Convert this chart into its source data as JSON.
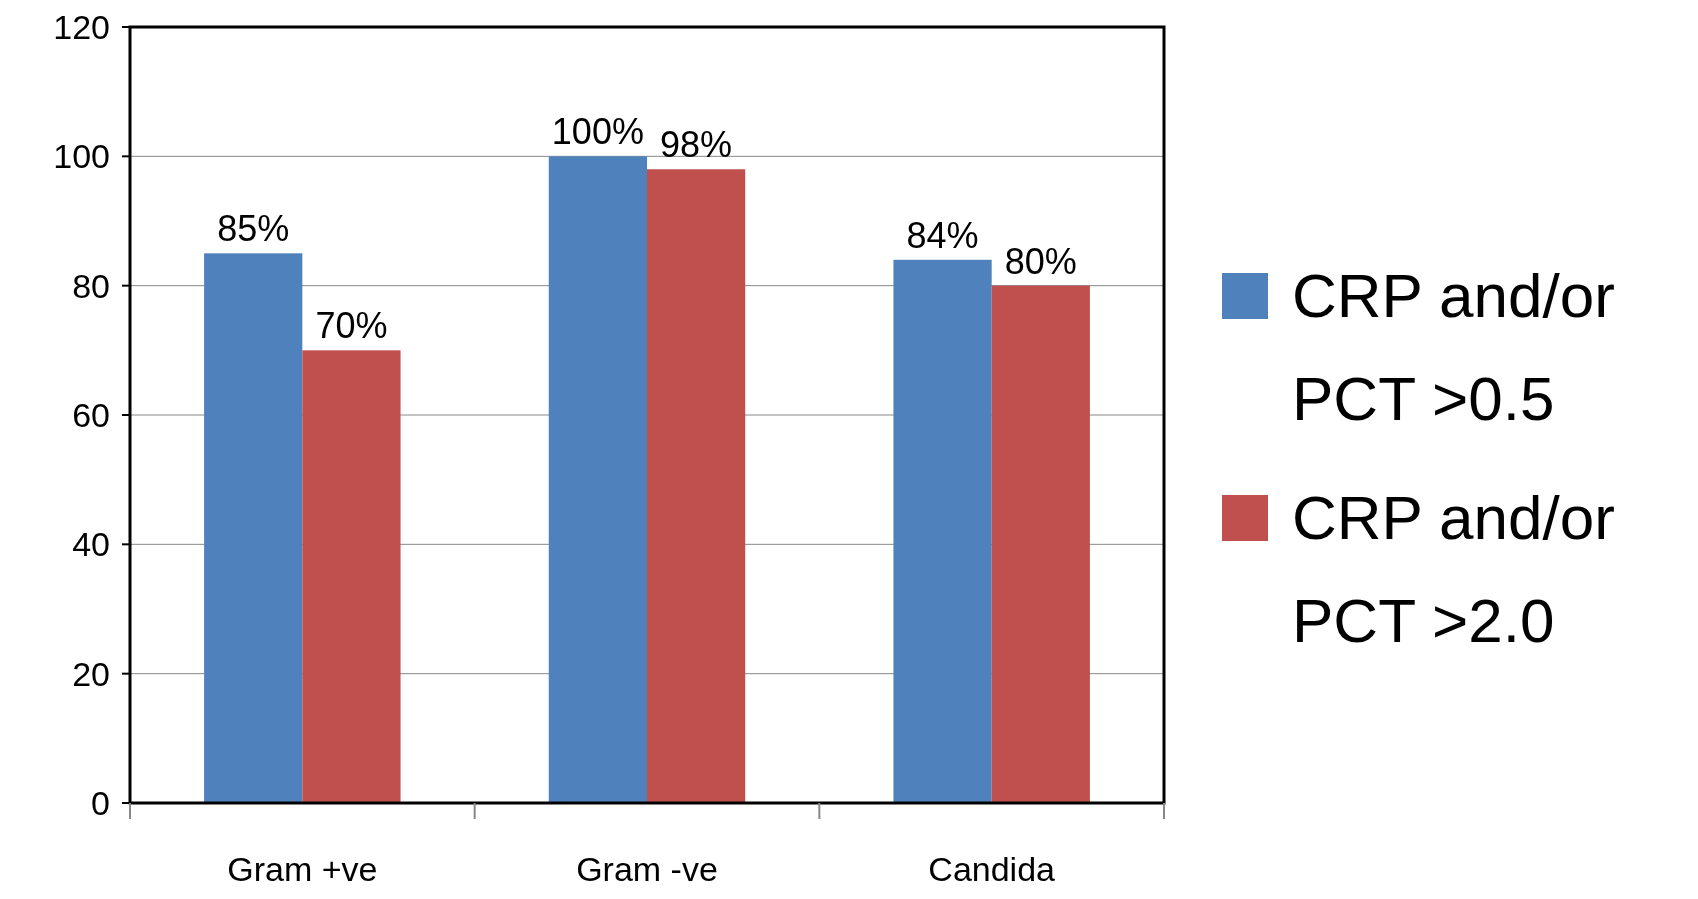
{
  "chart_data": {
    "type": "bar",
    "categories": [
      "Gram +ve",
      "Gram -ve",
      "Candida"
    ],
    "series": [
      {
        "name": "CRP and/or PCT >0.5",
        "color": "#4f81bd",
        "values": [
          85,
          100,
          84
        ],
        "value_labels": [
          "85%",
          "100%",
          "84%"
        ]
      },
      {
        "name": "CRP and/or PCT >2.0",
        "color": "#c0504d",
        "values": [
          70,
          98,
          80
        ],
        "value_labels": [
          "70%",
          "98%",
          "80%"
        ]
      }
    ],
    "ylim": [
      0,
      120
    ],
    "yticks": [
      0,
      20,
      40,
      60,
      80,
      100,
      120
    ],
    "grid": "y",
    "legend": "right"
  }
}
